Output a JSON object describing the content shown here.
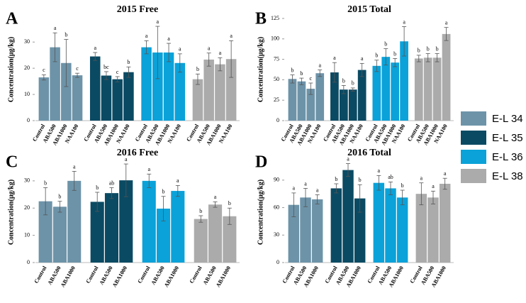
{
  "legend": {
    "entries": [
      {
        "name": "E-L 34",
        "color": "#6d93a8"
      },
      {
        "name": "E-L 35",
        "color": "#0b4a63"
      },
      {
        "name": "E-L 36",
        "color": "#0aa2d9"
      },
      {
        "name": "E-L 38",
        "color": "#ababab"
      }
    ]
  },
  "chart_data": [
    {
      "type": "bar",
      "panel": "A",
      "title": "2015 Free",
      "y_label": "Concentration(μg/kg)",
      "ylim": [
        0,
        39
      ],
      "yticks": [
        0,
        10,
        20,
        30
      ],
      "series": [
        {
          "categories": [
            "Control",
            "ABA500",
            "ABA1000",
            "NAA100"
          ],
          "values": [
            16.5,
            28,
            22,
            17.3
          ],
          "errors": [
            1,
            5.5,
            9,
            0.8
          ],
          "letters": [
            "c",
            "a",
            "b",
            "c"
          ]
        },
        {
          "categories": [
            "Control",
            "ABA500",
            "ABA1000",
            "NAA100"
          ],
          "values": [
            24.5,
            17.2,
            15.8,
            18.5
          ],
          "errors": [
            1.5,
            1.5,
            1,
            2
          ],
          "letters": [
            "a",
            "bc",
            "c",
            "b"
          ]
        },
        {
          "categories": [
            "Control",
            "ABA500",
            "ABA1000",
            "NAA100"
          ],
          "values": [
            28,
            26,
            26,
            22
          ],
          "errors": [
            2.5,
            10,
            3.5,
            3.5
          ],
          "letters": [
            "a",
            "a",
            "a",
            "a"
          ]
        },
        {
          "categories": [
            "Control",
            "ABA500",
            "ABA1000",
            "NAA100"
          ],
          "values": [
            15.8,
            23.3,
            21.5,
            23.5
          ],
          "errors": [
            2,
            2.5,
            2.5,
            7
          ],
          "letters": [
            "b",
            "a",
            "a",
            "a"
          ]
        }
      ]
    },
    {
      "type": "bar",
      "panel": "B",
      "title": "2015 Total",
      "y_label": "Concentration(μg/kg)",
      "ylim": [
        0,
        125
      ],
      "yticks": [
        0,
        25,
        50,
        75,
        100,
        125
      ],
      "series": [
        {
          "categories": [
            "Control",
            "ABA500",
            "ABA1000",
            "NAA100"
          ],
          "values": [
            51,
            48,
            39,
            58
          ],
          "errors": [
            5,
            4,
            7,
            4
          ],
          "letters": [
            "b",
            "b",
            "c",
            "a"
          ]
        },
        {
          "categories": [
            "Control",
            "ABA500",
            "ABA1000",
            "NAA100"
          ],
          "values": [
            59,
            38,
            38,
            62
          ],
          "errors": [
            12,
            5,
            2,
            8
          ],
          "letters": [
            "a",
            "b",
            "b",
            "a"
          ]
        },
        {
          "categories": [
            "Control",
            "ABA500",
            "ABA1000",
            "NAA100"
          ],
          "values": [
            67,
            78,
            71,
            97
          ],
          "errors": [
            7,
            10,
            5,
            18
          ],
          "letters": [
            "b",
            "b",
            "b",
            "a"
          ]
        },
        {
          "categories": [
            "Control",
            "ABA500",
            "ABA1000",
            "NAA100"
          ],
          "values": [
            76,
            77,
            77,
            106
          ],
          "errors": [
            4,
            5,
            5,
            8
          ],
          "letters": [
            "b",
            "b",
            "b",
            "a"
          ]
        }
      ]
    },
    {
      "type": "bar",
      "panel": "C",
      "title": "2016 Free",
      "y_label": "Concentration(μg/kg)",
      "ylim": [
        0,
        37
      ],
      "yticks": [
        0,
        10,
        20,
        30
      ],
      "series": [
        {
          "categories": [
            "Control",
            "ABA500",
            "ABA1000"
          ],
          "values": [
            22.5,
            20.5,
            30
          ],
          "errors": [
            5,
            2,
            3.5
          ],
          "letters": [
            "b",
            "b",
            "a"
          ]
        },
        {
          "categories": [
            "Control",
            "ABA500",
            "ABA1000"
          ],
          "values": [
            22.3,
            25.5,
            30.2
          ],
          "errors": [
            3.5,
            2,
            6
          ],
          "letters": [
            "b",
            "ab",
            "a"
          ]
        },
        {
          "categories": [
            "Control",
            "ABA500",
            "ABA1000"
          ],
          "values": [
            30,
            19.8,
            26.3
          ],
          "errors": [
            2.5,
            4.5,
            2
          ],
          "letters": [
            "a",
            "b",
            "a"
          ]
        },
        {
          "categories": [
            "Control",
            "ABA500",
            "ABA1000"
          ],
          "values": [
            16,
            21.3,
            17
          ],
          "errors": [
            1.2,
            1,
            3
          ],
          "letters": [
            "b",
            "a",
            "b"
          ]
        }
      ]
    },
    {
      "type": "bar",
      "panel": "D",
      "title": "2016 Total",
      "y_label": "Concentration(μg/kg)",
      "ylim": [
        0,
        110
      ],
      "yticks": [
        0,
        30,
        60,
        90
      ],
      "series": [
        {
          "categories": [
            "Control",
            "ABA500",
            "ABA1000"
          ],
          "values": [
            63,
            71,
            69
          ],
          "errors": [
            13,
            10,
            5
          ],
          "letters": [
            "a",
            "a",
            "a"
          ]
        },
        {
          "categories": [
            "Control",
            "ABA500",
            "ABA1000"
          ],
          "values": [
            81,
            101,
            70
          ],
          "errors": [
            5,
            7,
            15
          ],
          "letters": [
            "b",
            "a",
            "b"
          ]
        },
        {
          "categories": [
            "Control",
            "ABA500",
            "ABA1000"
          ],
          "values": [
            87,
            81,
            71
          ],
          "errors": [
            8,
            7,
            8
          ],
          "letters": [
            "a",
            "ab",
            "b"
          ]
        },
        {
          "categories": [
            "Control",
            "ABA500",
            "ABA1000"
          ],
          "values": [
            75,
            71,
            86
          ],
          "errors": [
            12,
            7,
            6
          ],
          "letters": [
            "a",
            "a",
            "a"
          ]
        }
      ]
    }
  ]
}
